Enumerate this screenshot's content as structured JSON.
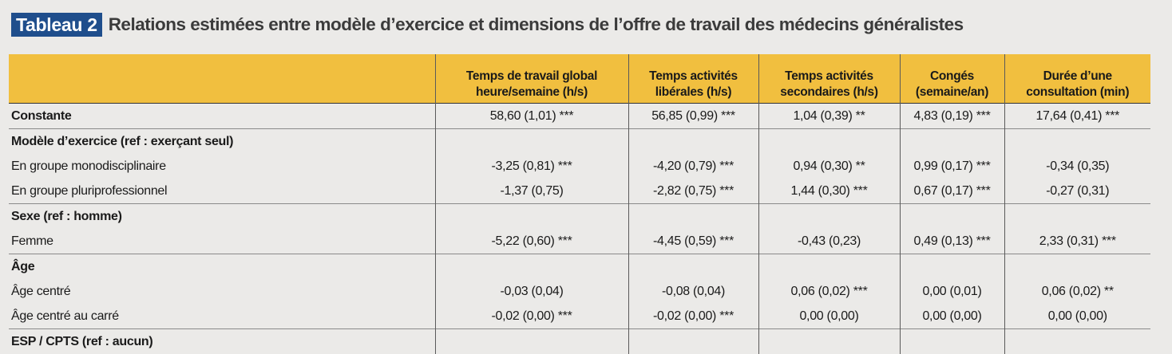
{
  "title": {
    "badge": "Tableau 2",
    "text": "Relations estimées entre modèle d’exercice et dimensions de l’offre de travail des médecins généralistes"
  },
  "table": {
    "headers": [
      "",
      "Temps de travail global heure/semaine (h/s)",
      "Temps activités libérales (h/s)",
      "Temps activités secondaires (h/s)",
      "Congés (semaine/an)",
      "Durée d’une consultation (min)"
    ],
    "rows": [
      {
        "label": "Constante",
        "kind": "const",
        "cells": [
          "58,60 (1,01) ***",
          "56,85 (0,99) ***",
          "1,04 (0,39) **",
          "4,83 (0,19) ***",
          "17,64 (0,41) ***"
        ]
      },
      {
        "label": "Modèle d’exercice (ref : exerçant seul)",
        "kind": "group",
        "cells": [
          "",
          "",
          "",
          "",
          ""
        ]
      },
      {
        "label": "En groupe monodisciplinaire",
        "kind": "item",
        "cells": [
          "-3,25 (0,81) ***",
          "-4,20 (0,79) ***",
          "0,94 (0,30) **",
          "0,99 (0,17) ***",
          "-0,34 (0,35)"
        ]
      },
      {
        "label": "En groupe pluriprofessionnel",
        "kind": "item",
        "cells": [
          "-1,37 (0,75)",
          "-2,82 (0,75) ***",
          "1,44 (0,30) ***",
          "0,67 (0,17) ***",
          "-0,27 (0,31)"
        ]
      },
      {
        "label": "Sexe (ref : homme)",
        "kind": "group",
        "cells": [
          "",
          "",
          "",
          "",
          ""
        ]
      },
      {
        "label": "Femme",
        "kind": "item",
        "cells": [
          "-5,22 (0,60) ***",
          "-4,45 (0,59) ***",
          "-0,43 (0,23)",
          "0,49 (0,13) ***",
          "2,33 (0,31) ***"
        ]
      },
      {
        "label": "Âge",
        "kind": "group",
        "cells": [
          "",
          "",
          "",
          "",
          ""
        ]
      },
      {
        "label": "Âge centré",
        "kind": "item",
        "cells": [
          "-0,03 (0,04)",
          "-0,08 (0,04)",
          "0,06 (0,02) ***",
          "0,00 (0,01)",
          "0,06 (0,02) **"
        ]
      },
      {
        "label": "Âge centré au carré",
        "kind": "item",
        "cells": [
          "-0,02 (0,00) ***",
          "-0,02 (0,00) ***",
          "0,00 (0,00)",
          "0,00 (0,00)",
          "0,00 (0,00)"
        ]
      },
      {
        "label": "ESP / CPTS (ref : aucun)",
        "kind": "group",
        "cells": [
          "",
          "",
          "",
          "",
          ""
        ]
      }
    ]
  },
  "colors": {
    "badge": "#1f4e8c",
    "header": "#f1bf3f",
    "background": "#ebeae8"
  }
}
